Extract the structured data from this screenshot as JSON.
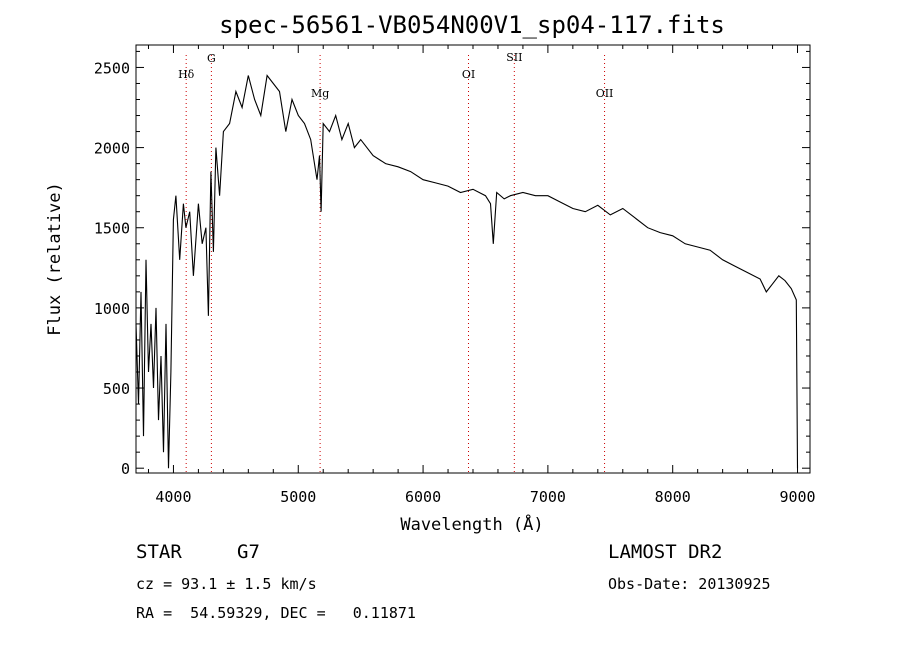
{
  "chart_data": {
    "type": "line",
    "title": "spec-56561-VB054N00V1_sp04-117.fits",
    "xlabel": "Wavelength (Å)",
    "ylabel": "Flux (relative)",
    "xlim": [
      3700,
      9100
    ],
    "ylim": [
      -30,
      2640
    ],
    "x_ticks": [
      4000,
      5000,
      6000,
      7000,
      8000,
      9000
    ],
    "y_ticks": [
      0,
      500,
      1000,
      1500,
      2000,
      2500
    ],
    "grid": false,
    "line_color": "#000000",
    "marker_color": "#cc0000",
    "series": [
      {
        "x": [
          3700,
          3720,
          3740,
          3760,
          3780,
          3800,
          3820,
          3840,
          3860,
          3880,
          3900,
          3920,
          3940,
          3960,
          3980,
          4000,
          4020,
          4050,
          4080,
          4100,
          4130,
          4160,
          4200,
          4230,
          4260,
          4280,
          4300,
          4320,
          4340,
          4370,
          4400,
          4450,
          4500,
          4550,
          4600,
          4650,
          4700,
          4750,
          4800,
          4850,
          4900,
          4950,
          5000,
          5050,
          5100,
          5150,
          5170,
          5183,
          5200,
          5250,
          5300,
          5350,
          5400,
          5450,
          5500,
          5600,
          5700,
          5800,
          5900,
          6000,
          6100,
          6200,
          6300,
          6400,
          6500,
          6540,
          6563,
          6590,
          6650,
          6700,
          6800,
          6900,
          7000,
          7100,
          7200,
          7300,
          7400,
          7500,
          7600,
          7700,
          7800,
          7900,
          8000,
          8100,
          8200,
          8300,
          8400,
          8500,
          8600,
          8700,
          8750,
          8800,
          8850,
          8900,
          8950,
          8990,
          9000
        ],
        "y": [
          900,
          400,
          1100,
          200,
          1300,
          600,
          900,
          500,
          1000,
          300,
          700,
          100,
          900,
          0,
          600,
          1550,
          1700,
          1300,
          1650,
          1500,
          1600,
          1200,
          1650,
          1400,
          1500,
          950,
          1850,
          1350,
          2000,
          1700,
          2100,
          2150,
          2350,
          2250,
          2450,
          2300,
          2200,
          2450,
          2400,
          2350,
          2100,
          2300,
          2200,
          2150,
          2050,
          1800,
          1950,
          1600,
          2150,
          2100,
          2200,
          2050,
          2150,
          2000,
          2050,
          1950,
          1900,
          1880,
          1850,
          1800,
          1780,
          1760,
          1720,
          1740,
          1700,
          1650,
          1400,
          1720,
          1680,
          1700,
          1720,
          1700,
          1700,
          1660,
          1620,
          1600,
          1640,
          1580,
          1620,
          1560,
          1500,
          1470,
          1450,
          1400,
          1380,
          1360,
          1300,
          1260,
          1220,
          1180,
          1100,
          1150,
          1200,
          1170,
          1120,
          1050,
          0
        ]
      }
    ],
    "lines": [
      {
        "label": "Hδ",
        "x": 4102
      },
      {
        "label": "G",
        "x": 4304
      },
      {
        "label": "Mg",
        "x": 5175
      },
      {
        "label": "OI",
        "x": 6364
      },
      {
        "label": "SII",
        "x": 6731
      },
      {
        "label": "OII",
        "x": 7454
      }
    ]
  },
  "footer": {
    "class_label": "STAR",
    "subclass_label": "G7",
    "survey": "LAMOST DR2",
    "cz": "cz = 93.1 ± 1.5 km/s",
    "obs_date": "Obs-Date: 20130925",
    "coords": "RA =  54.59329, DEC =   0.11871"
  }
}
